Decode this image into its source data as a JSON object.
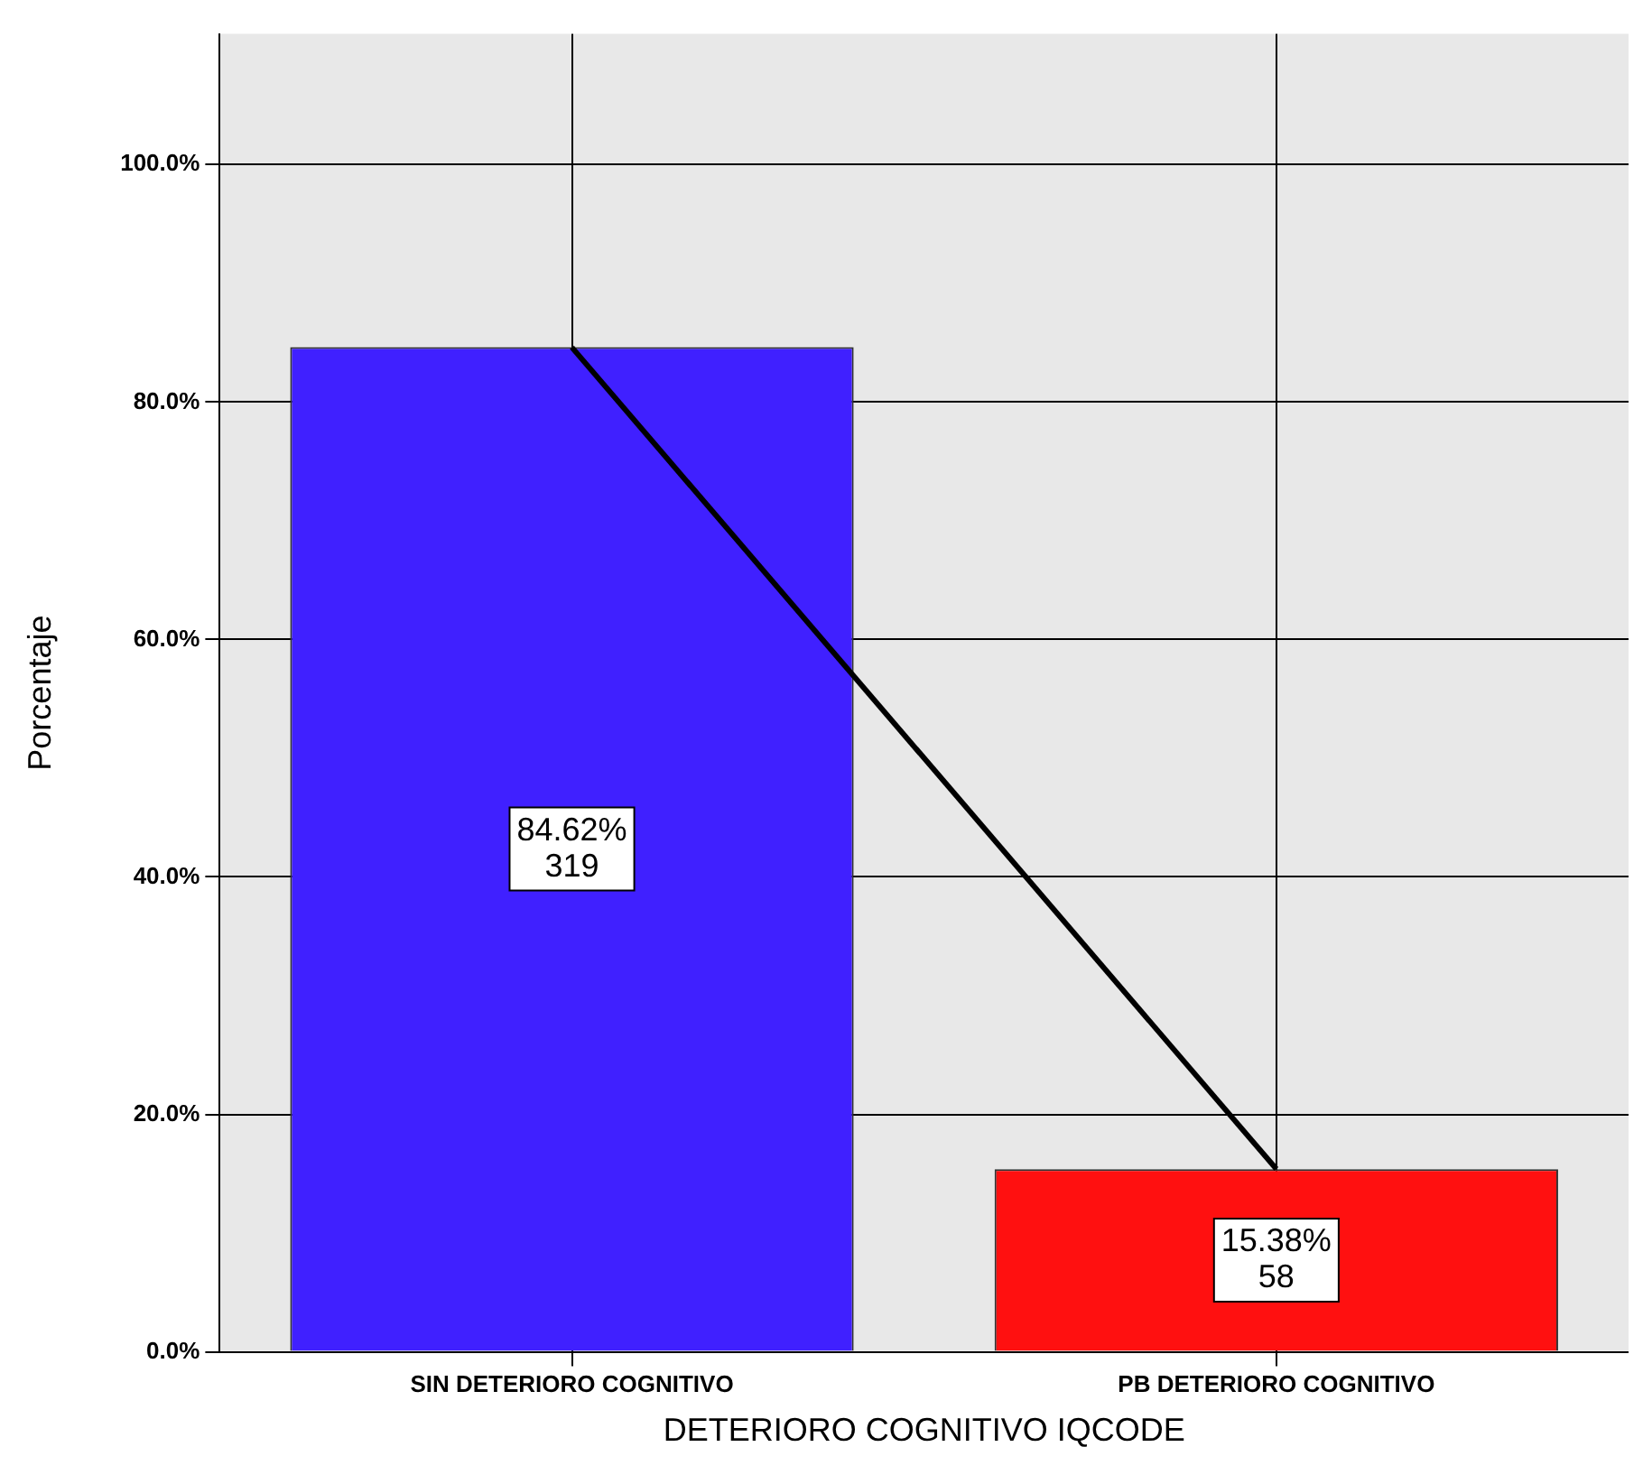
{
  "chart_data": {
    "type": "bar",
    "xlabel": "DETERIORO COGNITIVO IQCODE",
    "ylabel": "Porcentaje",
    "categories": [
      "SIN DETERIORO COGNITIVO",
      "PB DETERIORO COGNITIVO"
    ],
    "series": [
      {
        "colors": [
          "#4020ff",
          "#ff1010"
        ],
        "values": [
          84.62,
          15.38
        ],
        "value_labels": [
          "84.62%\n319",
          "15.38%\n58"
        ]
      },
      {
        "type": "line",
        "color": "#000000",
        "values": [
          84.6,
          15.4
        ]
      }
    ],
    "ylim": [
      0,
      111
    ],
    "yticks": [
      {
        "value": 0,
        "label": "0.0%"
      },
      {
        "value": 20,
        "label": "20.0%"
      },
      {
        "value": 40,
        "label": "40.0%"
      },
      {
        "value": 60,
        "label": "60.0%"
      },
      {
        "value": 80,
        "label": "80.0%"
      },
      {
        "value": 100,
        "label": "100.0%"
      }
    ],
    "grid": true
  }
}
